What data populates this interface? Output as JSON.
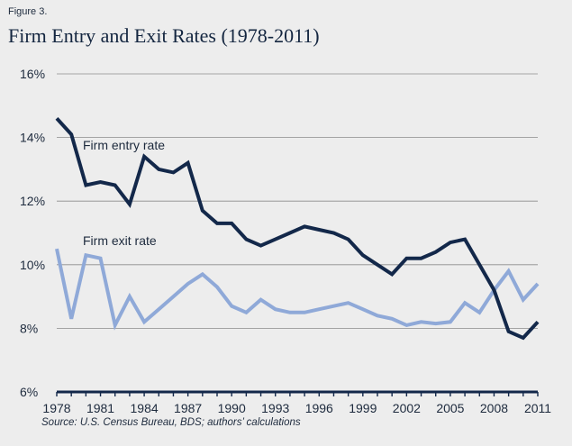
{
  "figure_label": "Figure 3.",
  "title": "Firm Entry and Exit Rates (1978-2011)",
  "source": "Source: U.S. Census Bureau, BDS; authors’ calculations",
  "colors": {
    "entry": "#13284a",
    "exit": "#8fa9d8",
    "grid": "#8c8c8c",
    "axis": "#13284a"
  },
  "chart_data": {
    "type": "line",
    "ylim": [
      6,
      16
    ],
    "yticks": [
      "6%",
      "8%",
      "10%",
      "12%",
      "14%",
      "16%"
    ],
    "xlim": [
      1978,
      2011
    ],
    "xticks": [
      "1978",
      "1981",
      "1984",
      "1987",
      "1990",
      "1993",
      "1996",
      "1999",
      "2002",
      "2005",
      "2008",
      "2011"
    ],
    "x": [
      1978,
      1979,
      1980,
      1981,
      1982,
      1983,
      1984,
      1985,
      1986,
      1987,
      1988,
      1989,
      1990,
      1991,
      1992,
      1993,
      1994,
      1995,
      1996,
      1997,
      1998,
      1999,
      2000,
      2001,
      2002,
      2003,
      2004,
      2005,
      2006,
      2007,
      2008,
      2009,
      2010,
      2011
    ],
    "grid": true,
    "series": [
      {
        "name": "Firm entry rate",
        "values": [
          14.6,
          14.1,
          12.5,
          12.6,
          12.5,
          11.9,
          13.4,
          13.0,
          12.9,
          13.2,
          11.7,
          11.3,
          11.3,
          10.8,
          10.6,
          10.8,
          11.0,
          11.2,
          11.1,
          11.0,
          10.8,
          10.3,
          10.0,
          9.7,
          10.2,
          10.2,
          10.4,
          10.7,
          10.8,
          10.0,
          9.2,
          7.9,
          7.7,
          8.2
        ]
      },
      {
        "name": "Firm exit rate",
        "values": [
          10.5,
          8.3,
          10.3,
          10.2,
          8.1,
          9.0,
          8.2,
          8.6,
          9.0,
          9.4,
          9.7,
          9.3,
          8.7,
          8.5,
          8.9,
          8.6,
          8.5,
          8.5,
          8.6,
          8.7,
          8.8,
          8.6,
          8.4,
          8.3,
          8.1,
          8.2,
          8.15,
          8.2,
          8.8,
          8.5,
          9.2,
          9.8,
          8.9,
          9.4
        ]
      }
    ]
  }
}
